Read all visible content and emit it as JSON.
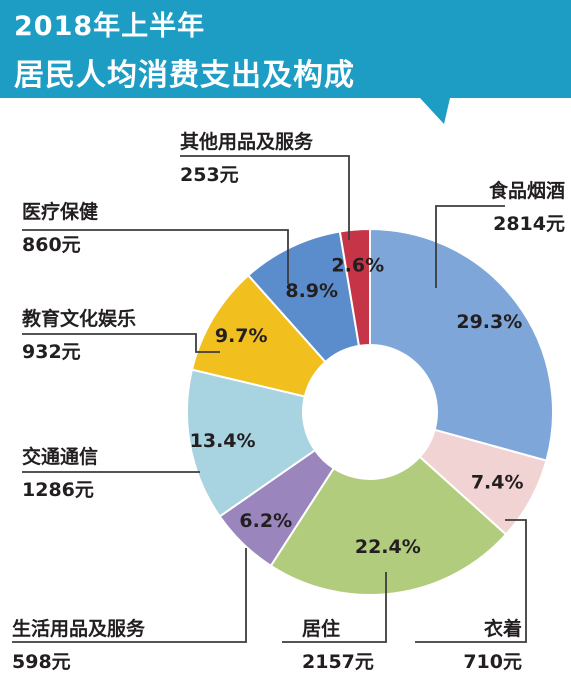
{
  "header": {
    "title_line1": "2018年上半年",
    "title_line2": "居民人均消费支出及构成",
    "band_color": "#1d9cc4"
  },
  "chart_data": {
    "type": "pie",
    "donut": true,
    "title": "2018年上半年 居民人均消费支出及构成",
    "categories": [
      "食品烟酒",
      "衣着",
      "居住",
      "生活用品及服务",
      "交通通信",
      "教育文化娱乐",
      "医疗保健",
      "其他用品及服务"
    ],
    "values": [
      2814,
      710,
      2157,
      598,
      1286,
      932,
      860,
      253
    ],
    "percent_labels": [
      "29.3%",
      "7.4%",
      "22.4%",
      "6.2%",
      "13.4%",
      "9.7%",
      "8.9%",
      "2.6%"
    ],
    "value_labels": [
      "2814元",
      "710元",
      "2157元",
      "598元",
      "1286元",
      "932元",
      "860元",
      "253元"
    ],
    "colors": [
      "#7ea6d9",
      "#f2d3d3",
      "#b2cc7e",
      "#9a86bd",
      "#a8d3e0",
      "#f1bf1e",
      "#5b8ccc",
      "#c63448"
    ],
    "start_angle_deg": 0,
    "direction": "clockwise"
  }
}
